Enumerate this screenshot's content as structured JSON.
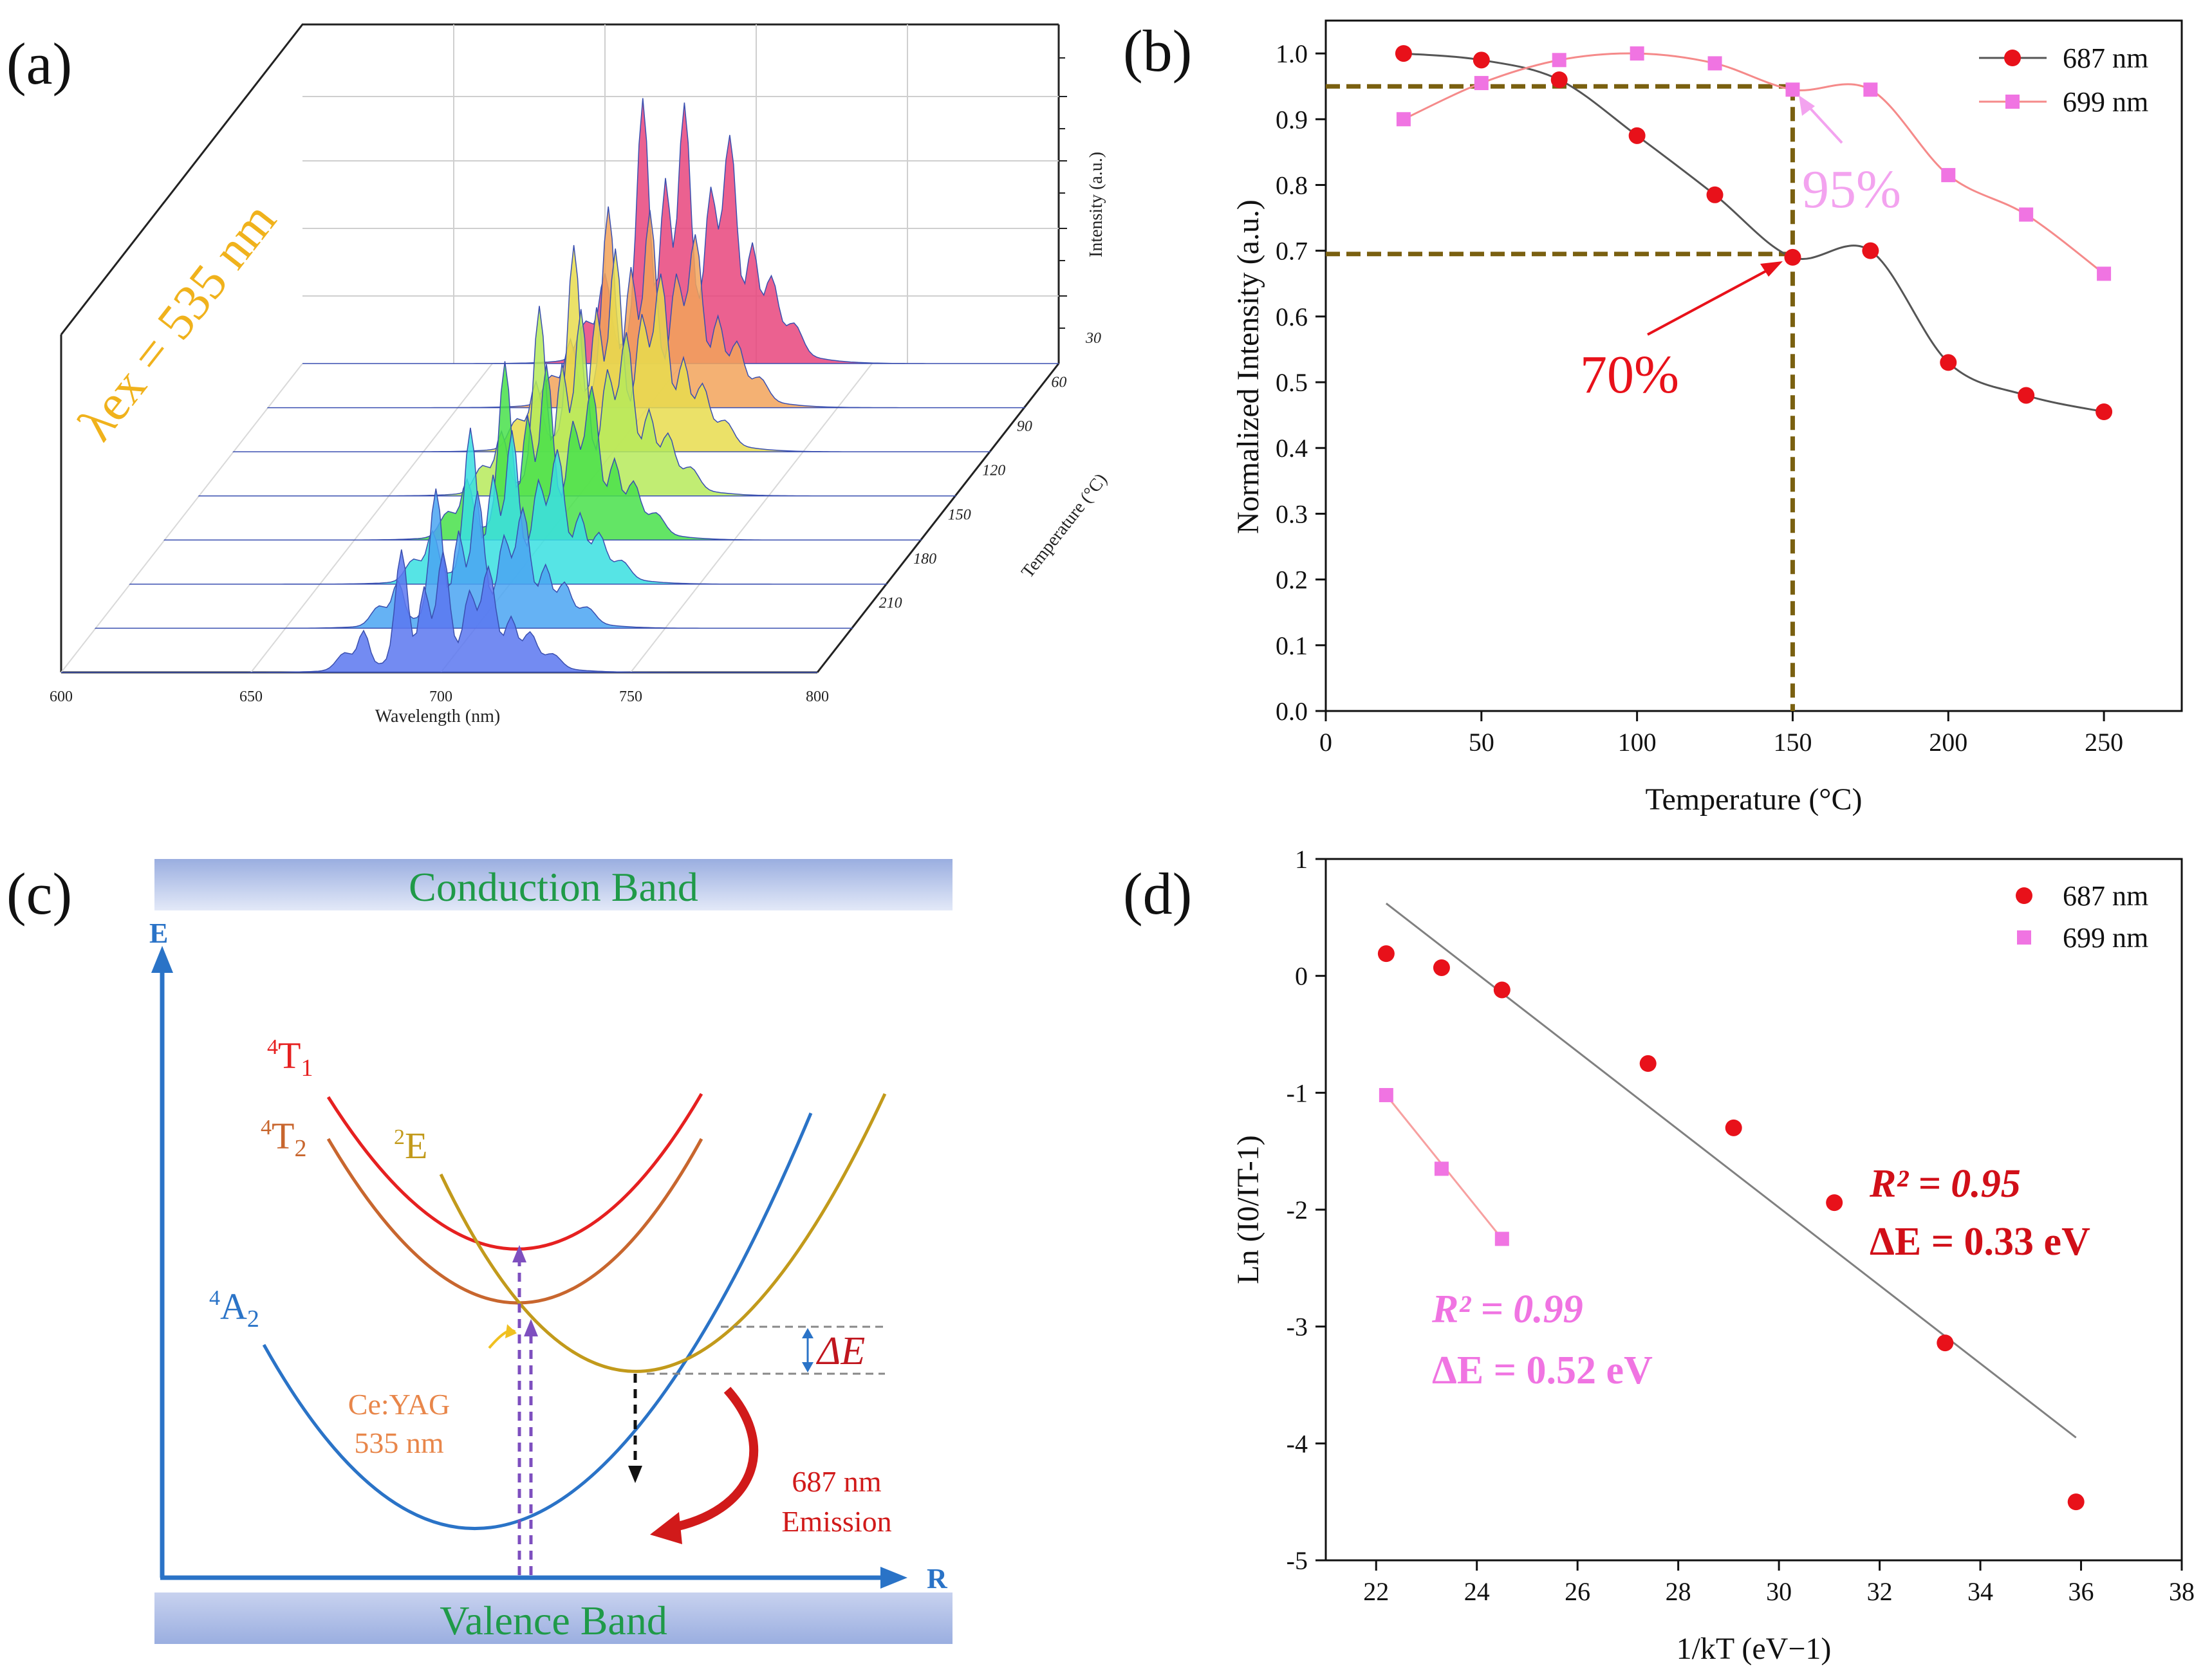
{
  "panels": {
    "a": "(a)",
    "b": "(b)",
    "c": "(c)",
    "d": "(d)"
  },
  "panel_a": {
    "excitation_label": "λex = 535 nm",
    "intensity_label": "Intensity (a.u.)",
    "temperature_label": "Temperature (°C)",
    "wavelength_label": "Wavelength (nm)",
    "temperatures": [
      "30",
      "60",
      "90",
      "120",
      "150",
      "180",
      "210"
    ],
    "wavelength_ticks": [
      "600",
      "650",
      "700",
      "750",
      "800"
    ]
  },
  "panel_c": {
    "conduction_band": "Conduction Band",
    "valence_band": "Valence Band",
    "axis_e": "E",
    "axis_r": "R",
    "t1": "4T1",
    "t2": "4T2",
    "e": "2E",
    "a2": "4A2",
    "delta_e": "ΔE",
    "pump_line1": "Ce:YAG",
    "pump_line2": "535 nm",
    "emission_line1": "687 nm",
    "emission_line2": "Emission"
  },
  "chart_data": [
    {
      "panel": "b",
      "type": "line",
      "xlabel": "Temperature (°C)",
      "ylabel": "Normalized Intensity (a.u.)",
      "xlim": [
        0,
        275
      ],
      "ylim": [
        0,
        1.05
      ],
      "x_ticks": [
        0,
        50,
        100,
        150,
        200,
        250
      ],
      "y_ticks": [
        0.0,
        0.1,
        0.2,
        0.3,
        0.4,
        0.5,
        0.6,
        0.7,
        0.8,
        0.9,
        1.0
      ],
      "x": [
        25,
        50,
        75,
        100,
        125,
        150,
        175,
        200,
        225,
        250
      ],
      "series": [
        {
          "name": "687 nm",
          "color": "#e8111a",
          "marker": "circle",
          "values": [
            1.0,
            0.99,
            0.96,
            0.875,
            0.785,
            0.69,
            0.7,
            0.53,
            0.48,
            0.455
          ]
        },
        {
          "name": "699 nm",
          "color": "#f074e2",
          "marker": "square",
          "values": [
            0.9,
            0.955,
            0.99,
            1.0,
            0.985,
            0.945,
            0.945,
            0.815,
            0.755,
            0.665
          ]
        }
      ],
      "annotations": [
        {
          "text": "70%",
          "color": "#e8111a"
        },
        {
          "text": "95%",
          "color": "#f3a3ef"
        }
      ],
      "guide_lines": [
        {
          "kind": "horizontal",
          "value": 0.95
        },
        {
          "kind": "horizontal",
          "value": 0.695
        },
        {
          "kind": "vertical",
          "value": 150
        }
      ],
      "legend_position": "top-right"
    },
    {
      "panel": "d",
      "type": "scatter",
      "xlabel": "1/kT (eV−1)",
      "ylabel": "Ln (I0/IT-1)",
      "xlim": [
        21,
        38
      ],
      "ylim": [
        -5,
        1
      ],
      "x_ticks": [
        22,
        24,
        26,
        28,
        30,
        32,
        34,
        36,
        38
      ],
      "y_ticks": [
        1,
        0,
        -1,
        -2,
        -3,
        -4,
        -5
      ],
      "series": [
        {
          "name": "687 nm",
          "color": "#e8111a",
          "marker": "circle",
          "x": [
            22.2,
            23.3,
            24.5,
            27.4,
            29.1,
            31.1,
            33.3,
            35.9
          ],
          "y": [
            0.19,
            0.07,
            -0.12,
            -0.75,
            -1.3,
            -1.94,
            -3.14,
            -4.5
          ]
        },
        {
          "name": "699 nm",
          "color": "#f074e2",
          "marker": "square",
          "x": [
            22.2,
            23.3,
            24.5
          ],
          "y": [
            -1.02,
            -1.65,
            -2.25
          ]
        }
      ],
      "fits": [
        {
          "series": "687 nm",
          "x": [
            22.2,
            35.9
          ],
          "y": [
            0.62,
            -3.95
          ],
          "color": "#808080"
        },
        {
          "series": "699 nm",
          "x": [
            22.2,
            24.5
          ],
          "y": [
            -1.02,
            -2.25
          ],
          "color": "#f7a0a0"
        }
      ],
      "annotations": [
        {
          "r2": "R² = 0.95",
          "delta": "ΔE = 0.33 eV",
          "color": "#d10f18"
        },
        {
          "r2": "R² = 0.99",
          "delta": "ΔE = 0.52 eV",
          "color": "#f074e2"
        }
      ],
      "legend_position": "top-right"
    }
  ]
}
